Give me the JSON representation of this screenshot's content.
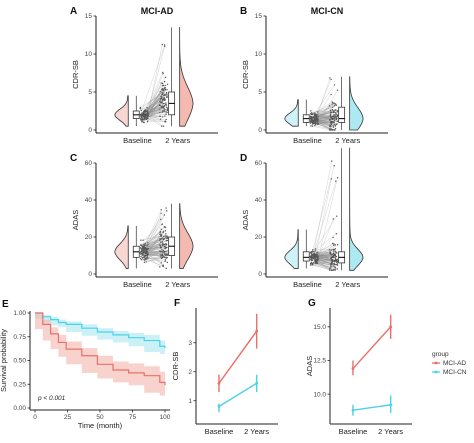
{
  "colors": {
    "ad": "#e8706a",
    "ad_fill": "#f3b5ac",
    "cn": "#49d3e6",
    "cn_fill": "#a8e8f2",
    "line": "#8c8c8c"
  },
  "chart_data": [
    {
      "panel": "A",
      "type": "raincloud",
      "title": "MCI-AD",
      "xlabel": "",
      "ylabel": "CDR-SB",
      "categories": [
        "Baseline",
        "2 Years"
      ],
      "ylim": [
        0,
        15
      ],
      "yticks": [
        0,
        5,
        10,
        15
      ],
      "series": [
        {
          "category": "Baseline",
          "median": 2.0,
          "q1": 1.5,
          "q3": 2.5,
          "min": 0.5,
          "max": 4.5
        },
        {
          "category": "2 Years",
          "median": 3.5,
          "q1": 2.0,
          "q3": 5.0,
          "min": 0.5,
          "max": 13.5
        }
      ]
    },
    {
      "panel": "B",
      "type": "raincloud",
      "title": "MCI-CN",
      "xlabel": "",
      "ylabel": "CDR-SB",
      "categories": [
        "Baseline",
        "2 Years"
      ],
      "ylim": [
        0,
        15
      ],
      "yticks": [
        0,
        5,
        10,
        15
      ],
      "series": [
        {
          "category": "Baseline",
          "median": 1.5,
          "q1": 1.0,
          "q3": 2.0,
          "min": 0.5,
          "max": 4.0
        },
        {
          "category": "2 Years",
          "median": 1.5,
          "q1": 1.0,
          "q3": 3.0,
          "min": 0.0,
          "max": 7.0
        }
      ]
    },
    {
      "panel": "C",
      "type": "raincloud",
      "title": "",
      "xlabel": "",
      "ylabel": "ADAS",
      "categories": [
        "Baseline",
        "2 Years"
      ],
      "ylim": [
        0,
        60
      ],
      "yticks": [
        0,
        20,
        40,
        60
      ],
      "series": [
        {
          "category": "Baseline",
          "median": 12,
          "q1": 9,
          "q3": 15,
          "min": 3,
          "max": 26
        },
        {
          "category": "2 Years",
          "median": 15,
          "q1": 10,
          "q3": 20,
          "min": 3,
          "max": 38
        }
      ]
    },
    {
      "panel": "D",
      "type": "raincloud",
      "title": "",
      "xlabel": "",
      "ylabel": "ADAS",
      "categories": [
        "Baseline",
        "2 Years"
      ],
      "ylim": [
        0,
        60
      ],
      "yticks": [
        0,
        20,
        40,
        60
      ],
      "series": [
        {
          "category": "Baseline",
          "median": 9,
          "q1": 7,
          "q3": 12,
          "min": 3,
          "max": 24
        },
        {
          "category": "2 Years",
          "median": 9,
          "q1": 6,
          "q3": 12,
          "min": 2,
          "max": 68
        }
      ]
    },
    {
      "panel": "E",
      "type": "line",
      "title": "",
      "xlabel": "Time (month)",
      "ylabel": "Survival probability",
      "xlim": [
        0,
        100
      ],
      "xticks": [
        0,
        25,
        50,
        75,
        100
      ],
      "ylim": [
        0,
        1
      ],
      "yticks": [
        0,
        0.25,
        0.5,
        0.75,
        1
      ],
      "annotation": "p < 0.001",
      "series": [
        {
          "group": "MCI-CN",
          "x": [
            0,
            6,
            12,
            18,
            24,
            36,
            48,
            60,
            72,
            84,
            96,
            100
          ],
          "y": [
            1.0,
            0.96,
            0.93,
            0.9,
            0.88,
            0.84,
            0.8,
            0.77,
            0.74,
            0.71,
            0.65,
            0.63
          ],
          "lower": [
            1.0,
            0.94,
            0.9,
            0.87,
            0.85,
            0.8,
            0.76,
            0.72,
            0.69,
            0.65,
            0.59,
            0.57
          ],
          "upper": [
            1.0,
            0.98,
            0.96,
            0.93,
            0.91,
            0.88,
            0.84,
            0.81,
            0.79,
            0.77,
            0.71,
            0.69
          ]
        },
        {
          "group": "MCI-AD",
          "x": [
            0,
            6,
            12,
            18,
            24,
            36,
            48,
            60,
            72,
            84,
            96,
            100
          ],
          "y": [
            1.0,
            0.88,
            0.78,
            0.69,
            0.62,
            0.55,
            0.46,
            0.4,
            0.37,
            0.34,
            0.27,
            0.24
          ],
          "lower": [
            1.0,
            0.83,
            0.71,
            0.62,
            0.54,
            0.46,
            0.37,
            0.31,
            0.27,
            0.24,
            0.16,
            0.13
          ],
          "upper": [
            1.0,
            0.93,
            0.85,
            0.77,
            0.7,
            0.63,
            0.55,
            0.49,
            0.47,
            0.44,
            0.38,
            0.35
          ]
        }
      ]
    },
    {
      "panel": "F",
      "type": "line",
      "title": "",
      "xlabel": "",
      "ylabel": "CDR-SB",
      "categories": [
        "Baseline",
        "2 Years"
      ],
      "ylim": [
        0.3,
        4.2
      ],
      "yticks": [
        1,
        2,
        3
      ],
      "series": [
        {
          "group": "MCI-AD",
          "values": [
            1.6,
            3.4
          ],
          "lower": [
            1.3,
            2.8
          ],
          "upper": [
            1.9,
            4.0
          ]
        },
        {
          "group": "MCI-CN",
          "values": [
            0.8,
            1.6
          ],
          "lower": [
            0.6,
            1.3
          ],
          "upper": [
            0.9,
            1.9
          ]
        }
      ]
    },
    {
      "panel": "G",
      "type": "line",
      "title": "",
      "xlabel": "",
      "ylabel": "ADAS",
      "categories": [
        "Baseline",
        "2 Years"
      ],
      "ylim": [
        8.0,
        16.4
      ],
      "yticks": [
        10.0,
        12.5,
        15.0
      ],
      "legend": {
        "title": "group",
        "entries": [
          "MCI-AD",
          "MCI-CN"
        ],
        "position": "right"
      },
      "series": [
        {
          "group": "MCI-AD",
          "values": [
            11.9,
            15.0
          ],
          "lower": [
            11.4,
            14.1
          ],
          "upper": [
            12.5,
            15.9
          ]
        },
        {
          "group": "MCI-CN",
          "values": [
            8.8,
            9.2
          ],
          "lower": [
            8.4,
            8.6
          ],
          "upper": [
            9.2,
            9.9
          ]
        }
      ]
    }
  ]
}
